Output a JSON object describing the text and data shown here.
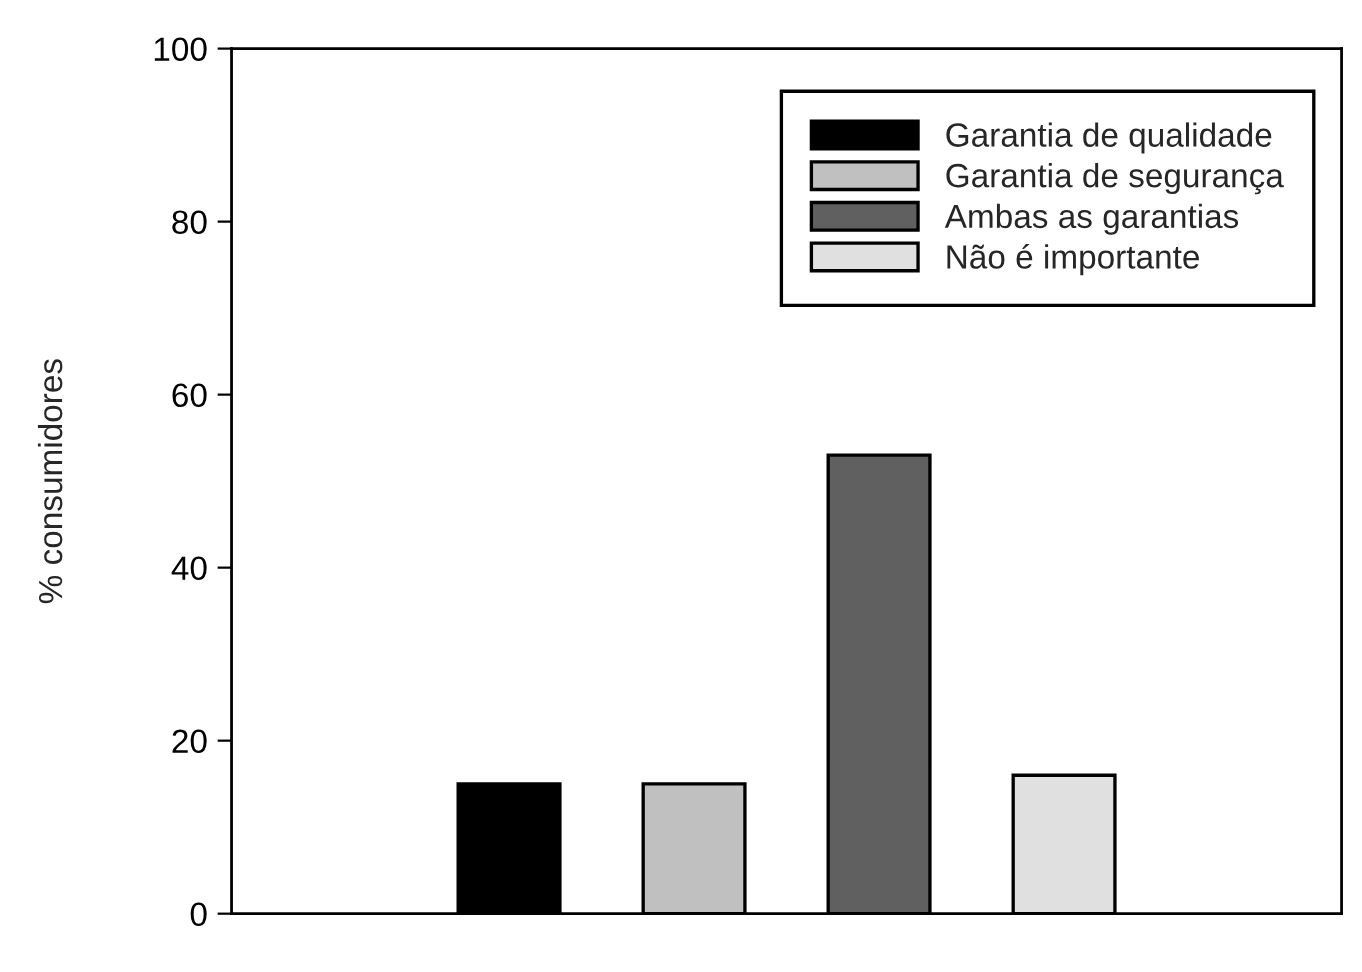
{
  "chart_data": {
    "type": "bar",
    "ylabel": "% consumidores",
    "categories": [
      null,
      null,
      null,
      null,
      null,
      null
    ],
    "series": [
      {
        "name": "Garantia de qualidade",
        "color": "#000000",
        "values": [
          null,
          15,
          null,
          null,
          null,
          null
        ]
      },
      {
        "name": "Garantia de segurança",
        "color": "#c0c0c0",
        "values": [
          null,
          null,
          15,
          null,
          null,
          null
        ]
      },
      {
        "name": "Ambas as garantias",
        "color": "#606060",
        "values": [
          null,
          null,
          null,
          53,
          null,
          null
        ]
      },
      {
        "name": "Não é importante",
        "color": "#e0e0e0",
        "values": [
          null,
          null,
          null,
          null,
          16,
          null
        ]
      }
    ],
    "ylim": [
      0,
      100
    ],
    "yticks": [
      0,
      20,
      40,
      60,
      80,
      100
    ],
    "grid": false,
    "legend": "top right"
  }
}
